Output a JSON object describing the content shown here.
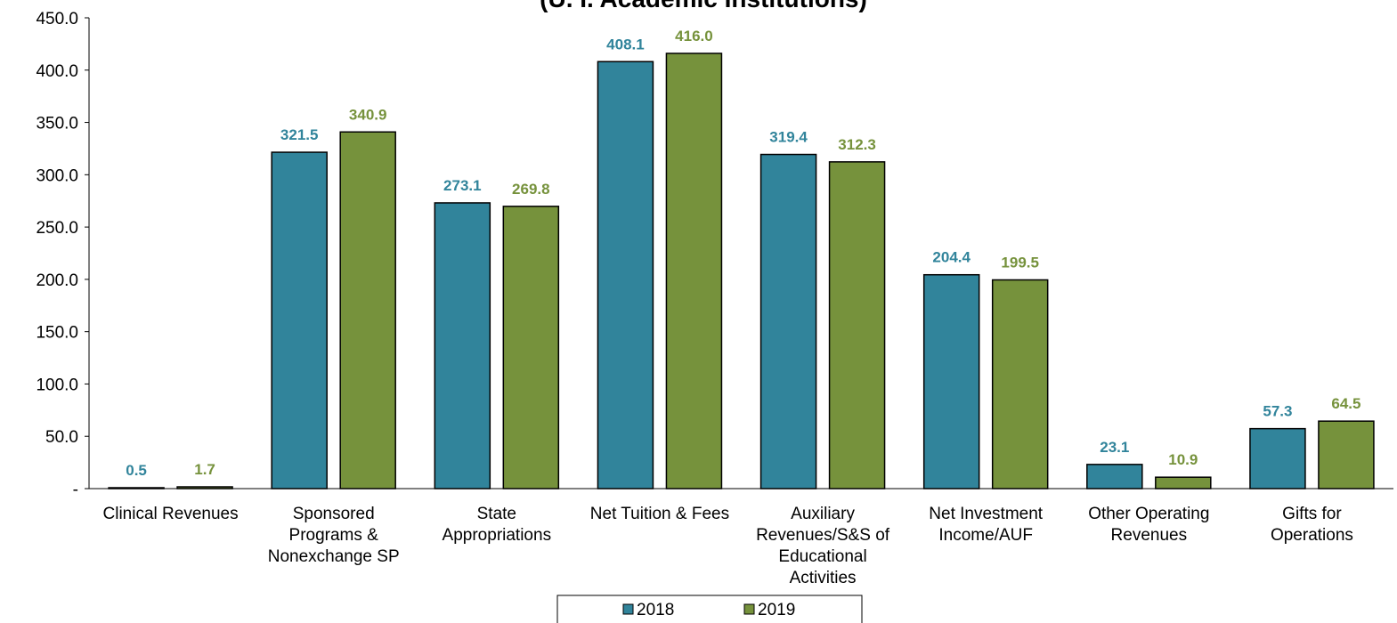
{
  "chart_data": {
    "type": "bar",
    "title": "(U. I. Academic Institutions)",
    "xlabel": "",
    "ylabel": "",
    "ylim": [
      0,
      450
    ],
    "yticks": [
      {
        "value": 0,
        "label": "-"
      },
      {
        "value": 50,
        "label": "50.0"
      },
      {
        "value": 100,
        "label": "100.0"
      },
      {
        "value": 150,
        "label": "150.0"
      },
      {
        "value": 200,
        "label": "200.0"
      },
      {
        "value": 250,
        "label": "250.0"
      },
      {
        "value": 300,
        "label": "300.0"
      },
      {
        "value": 350,
        "label": "350.0"
      },
      {
        "value": 400,
        "label": "400.0"
      },
      {
        "value": 450,
        "label": "450.0"
      }
    ],
    "categories": [
      [
        "Clinical Revenues"
      ],
      [
        "Sponsored",
        "Programs &",
        "Nonexchange SP"
      ],
      [
        "State",
        "Appropriations"
      ],
      [
        "Net Tuition & Fees"
      ],
      [
        "Auxiliary",
        "Revenues/S&S of",
        "Educational",
        "Activities"
      ],
      [
        "Net Investment",
        "Income/AUF"
      ],
      [
        "Other Operating",
        "Revenues"
      ],
      [
        "Gifts for",
        "Operations"
      ]
    ],
    "series": [
      {
        "name": "2018",
        "color": "#31849b",
        "values": [
          0.5,
          321.5,
          273.1,
          408.1,
          319.4,
          204.4,
          23.1,
          57.3
        ],
        "labels": [
          "0.5",
          "321.5",
          "273.1",
          "408.1",
          "319.4",
          "204.4",
          "23.1",
          "57.3"
        ]
      },
      {
        "name": "2019",
        "color": "#76923c",
        "values": [
          1.7,
          340.9,
          269.8,
          416.0,
          312.3,
          199.5,
          10.9,
          64.5
        ],
        "labels": [
          "1.7",
          "340.9",
          "269.8",
          "416.0",
          "312.3",
          "199.5",
          "10.9",
          "64.5"
        ]
      }
    ],
    "grid": false,
    "legend": "bottom"
  }
}
